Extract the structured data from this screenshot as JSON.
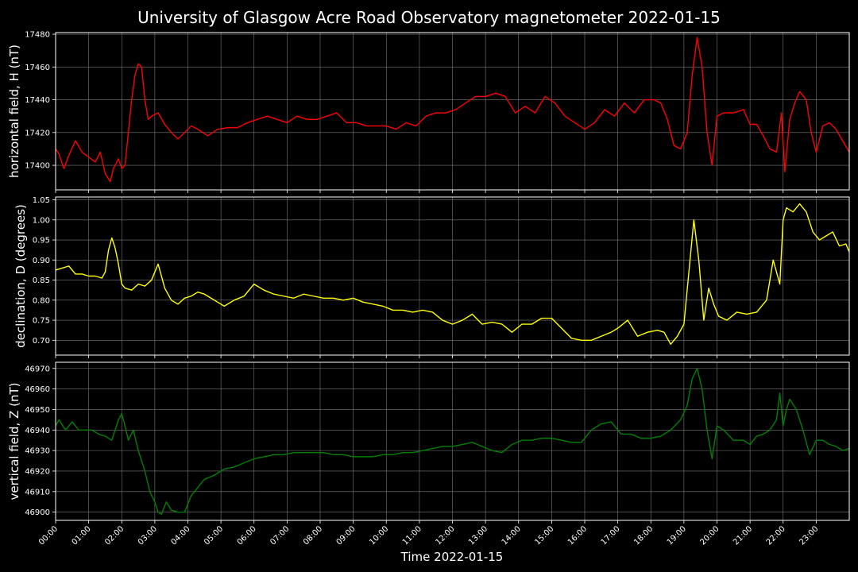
{
  "figure": {
    "title": "University of Glasgow Acre Road Observatory magnetometer 2022-01-15",
    "background": "#000000",
    "foreground": "#ffffff",
    "grid_color": "#7a7a7a"
  },
  "chart_data": [
    {
      "type": "line",
      "id": "H",
      "ylabel": "horizontal field, H (nT)",
      "color": "#ff0000",
      "ylim": [
        17385,
        17481
      ],
      "yticks": [
        "17400",
        "17420",
        "17440",
        "17460",
        "17480"
      ],
      "xlim": [
        0,
        24
      ],
      "grid": true,
      "series": [
        {
          "x": [
            0,
            0.1,
            0.25,
            0.4,
            0.6,
            0.8,
            1.0,
            1.2,
            1.35,
            1.5,
            1.65,
            1.75,
            1.9,
            2.0,
            2.1,
            2.2,
            2.3,
            2.4,
            2.5,
            2.6,
            2.7,
            2.8,
            2.9,
            3.1,
            3.3,
            3.5,
            3.7,
            3.9,
            4.1,
            4.3,
            4.6,
            4.9,
            5.2,
            5.5,
            5.8,
            6.1,
            6.4,
            6.7,
            7.0,
            7.3,
            7.6,
            7.9,
            8.2,
            8.5,
            8.8,
            9.1,
            9.4,
            9.7,
            10.0,
            10.3,
            10.6,
            10.9,
            11.2,
            11.5,
            11.8,
            12.1,
            12.4,
            12.7,
            13.0,
            13.3,
            13.6,
            13.9,
            14.2,
            14.5,
            14.8,
            15.1,
            15.4,
            15.7,
            16.0,
            16.3,
            16.6,
            16.9,
            17.2,
            17.5,
            17.8,
            18.1,
            18.3,
            18.5,
            18.7,
            18.9,
            19.1,
            19.25,
            19.4,
            19.55,
            19.7,
            19.85,
            20.0,
            20.2,
            20.5,
            20.8,
            21.0,
            21.2,
            21.4,
            21.6,
            21.8,
            21.95,
            22.05,
            22.2,
            22.35,
            22.5,
            22.7,
            22.85,
            23.0,
            23.2,
            23.4,
            23.6,
            23.8,
            24.0
          ],
          "y": [
            17410,
            17407,
            17398,
            17406,
            17415,
            17408,
            17405,
            17402,
            17408,
            17395,
            17390,
            17398,
            17404,
            17398,
            17400,
            17420,
            17440,
            17455,
            17462,
            17460,
            17440,
            17428,
            17430,
            17432,
            17425,
            17420,
            17416,
            17420,
            17424,
            17422,
            17418,
            17422,
            17423,
            17423,
            17426,
            17428,
            17430,
            17428,
            17426,
            17430,
            17428,
            17428,
            17430,
            17432,
            17426,
            17426,
            17424,
            17424,
            17424,
            17422,
            17426,
            17424,
            17430,
            17432,
            17432,
            17434,
            17438,
            17442,
            17442,
            17444,
            17442,
            17432,
            17436,
            17432,
            17442,
            17438,
            17430,
            17426,
            17422,
            17426,
            17434,
            17430,
            17438,
            17432,
            17440,
            17440,
            17438,
            17428,
            17412,
            17410,
            17420,
            17455,
            17478,
            17460,
            17420,
            17400,
            17430,
            17432,
            17432,
            17434,
            17425,
            17425,
            17418,
            17410,
            17408,
            17432,
            17396,
            17428,
            17438,
            17445,
            17440,
            17420,
            17408,
            17424,
            17426,
            17422,
            17415,
            17408
          ]
        }
      ]
    },
    {
      "type": "line",
      "id": "D",
      "ylabel": "declination, D (degrees)",
      "color": "#ffff00",
      "ylim": [
        0.663,
        1.057
      ],
      "yticks": [
        "0.70",
        "0.75",
        "0.80",
        "0.85",
        "0.90",
        "0.95",
        "1.00",
        "1.05"
      ],
      "xlim": [
        0,
        24
      ],
      "grid": true,
      "series": [
        {
          "x": [
            0,
            0.2,
            0.4,
            0.6,
            0.8,
            1.0,
            1.2,
            1.4,
            1.5,
            1.6,
            1.7,
            1.8,
            1.9,
            2.0,
            2.1,
            2.3,
            2.5,
            2.7,
            2.9,
            3.1,
            3.3,
            3.5,
            3.7,
            3.9,
            4.1,
            4.3,
            4.5,
            4.7,
            4.9,
            5.1,
            5.4,
            5.7,
            6.0,
            6.3,
            6.6,
            6.9,
            7.2,
            7.5,
            7.8,
            8.1,
            8.4,
            8.7,
            9.0,
            9.3,
            9.6,
            9.9,
            10.2,
            10.5,
            10.8,
            11.1,
            11.4,
            11.7,
            12.0,
            12.3,
            12.6,
            12.9,
            13.2,
            13.5,
            13.8,
            14.1,
            14.4,
            14.7,
            15.0,
            15.3,
            15.6,
            15.9,
            16.2,
            16.5,
            16.8,
            17.0,
            17.3,
            17.6,
            17.9,
            18.2,
            18.4,
            18.6,
            18.8,
            19.0,
            19.15,
            19.3,
            19.45,
            19.6,
            19.75,
            19.9,
            20.05,
            20.3,
            20.6,
            20.9,
            21.2,
            21.5,
            21.7,
            21.9,
            22.0,
            22.1,
            22.3,
            22.5,
            22.7,
            22.9,
            23.1,
            23.3,
            23.5,
            23.7,
            23.9,
            24.0
          ],
          "y": [
            0.875,
            0.88,
            0.885,
            0.865,
            0.865,
            0.86,
            0.86,
            0.855,
            0.87,
            0.925,
            0.955,
            0.93,
            0.89,
            0.84,
            0.83,
            0.825,
            0.84,
            0.835,
            0.85,
            0.89,
            0.83,
            0.8,
            0.79,
            0.805,
            0.81,
            0.82,
            0.815,
            0.805,
            0.795,
            0.785,
            0.8,
            0.81,
            0.84,
            0.825,
            0.815,
            0.81,
            0.805,
            0.815,
            0.81,
            0.805,
            0.805,
            0.8,
            0.805,
            0.795,
            0.79,
            0.785,
            0.775,
            0.775,
            0.77,
            0.775,
            0.77,
            0.75,
            0.74,
            0.75,
            0.765,
            0.74,
            0.745,
            0.74,
            0.72,
            0.74,
            0.74,
            0.755,
            0.755,
            0.73,
            0.705,
            0.7,
            0.7,
            0.71,
            0.72,
            0.73,
            0.75,
            0.71,
            0.72,
            0.725,
            0.72,
            0.69,
            0.71,
            0.74,
            0.87,
            1.0,
            0.9,
            0.75,
            0.83,
            0.79,
            0.76,
            0.75,
            0.77,
            0.765,
            0.77,
            0.8,
            0.9,
            0.84,
            1.0,
            1.03,
            1.02,
            1.04,
            1.02,
            0.97,
            0.95,
            0.96,
            0.97,
            0.935,
            0.94,
            0.92
          ]
        }
      ]
    },
    {
      "type": "line",
      "id": "Z",
      "ylabel": "vertical field, Z (nT)",
      "color": "#008000",
      "ylim": [
        46896,
        46973
      ],
      "yticks": [
        "46900",
        "46910",
        "46920",
        "46930",
        "46940",
        "46950",
        "46960",
        "46970"
      ],
      "xlim": [
        0,
        24
      ],
      "grid": true,
      "series": [
        {
          "x": [
            0,
            0.1,
            0.3,
            0.5,
            0.7,
            0.9,
            1.1,
            1.3,
            1.5,
            1.7,
            1.9,
            2.0,
            2.1,
            2.2,
            2.35,
            2.5,
            2.7,
            2.85,
            3.0,
            3.1,
            3.2,
            3.35,
            3.5,
            3.7,
            3.9,
            4.1,
            4.3,
            4.5,
            4.8,
            5.1,
            5.4,
            5.7,
            6.0,
            6.3,
            6.6,
            6.9,
            7.2,
            7.5,
            7.8,
            8.1,
            8.4,
            8.7,
            9.0,
            9.3,
            9.6,
            9.9,
            10.2,
            10.5,
            10.8,
            11.1,
            11.4,
            11.7,
            12.0,
            12.3,
            12.6,
            12.9,
            13.2,
            13.5,
            13.8,
            14.1,
            14.4,
            14.7,
            15.0,
            15.3,
            15.6,
            15.9,
            16.2,
            16.5,
            16.8,
            17.1,
            17.4,
            17.7,
            18.0,
            18.3,
            18.6,
            18.9,
            19.1,
            19.25,
            19.4,
            19.55,
            19.7,
            19.85,
            20.0,
            20.2,
            20.5,
            20.8,
            21.0,
            21.2,
            21.4,
            21.6,
            21.8,
            21.9,
            22.0,
            22.1,
            22.2,
            22.4,
            22.6,
            22.8,
            23.0,
            23.2,
            23.4,
            23.6,
            23.8,
            24.0
          ],
          "y": [
            46942,
            46945,
            46940,
            46944,
            46940,
            46940,
            46940,
            46938,
            46937,
            46935,
            46945,
            46948,
            46942,
            46935,
            46940,
            46930,
            46920,
            46910,
            46905,
            46900,
            46899,
            46905,
            46901,
            46900,
            46900,
            46908,
            46912,
            46916,
            46918,
            46921,
            46922,
            46924,
            46926,
            46927,
            46928,
            46928,
            46929,
            46929,
            46929,
            46929,
            46928,
            46928,
            46927,
            46927,
            46927,
            46928,
            46928,
            46929,
            46929,
            46930,
            46931,
            46932,
            46932,
            46933,
            46934,
            46932,
            46930,
            46929,
            46933,
            46935,
            46935,
            46936,
            46936,
            46935,
            46934,
            46934,
            46940,
            46943,
            46944,
            46938,
            46938,
            46936,
            46936,
            46937,
            46940,
            46945,
            46952,
            46965,
            46970,
            46960,
            46940,
            46926,
            46942,
            46940,
            46935,
            46935,
            46933,
            46937,
            46938,
            46940,
            46945,
            46958,
            46942,
            46950,
            46955,
            46950,
            46940,
            46928,
            46935,
            46935,
            46933,
            46932,
            46930,
            46931
          ]
        }
      ]
    }
  ],
  "xaxis": {
    "label": "Time 2022-01-15",
    "tick_labels": [
      "00:00",
      "01:00",
      "02:00",
      "03:00",
      "04:00",
      "05:00",
      "06:00",
      "07:00",
      "08:00",
      "09:00",
      "10:00",
      "11:00",
      "12:00",
      "13:00",
      "14:00",
      "15:00",
      "16:00",
      "17:00",
      "18:00",
      "19:00",
      "20:00",
      "21:00",
      "22:00",
      "23:00"
    ]
  }
}
